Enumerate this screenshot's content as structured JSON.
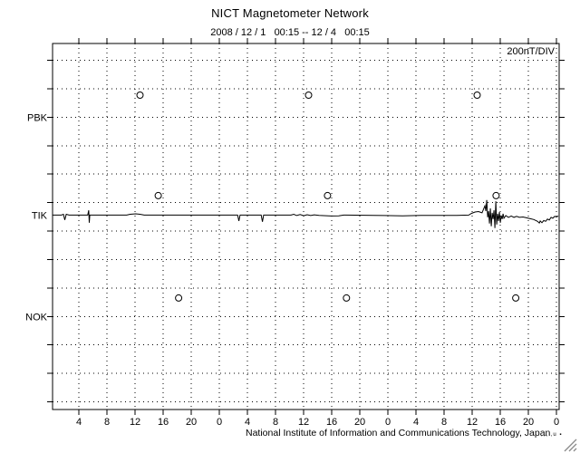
{
  "header": {
    "title": "NICT Magnetometer Network",
    "subtitle": "2008 / 12 / 1   00:15 -- 12 / 4   00:15"
  },
  "footer": {
    "credit": "National Institute of Information and Communications Technology, Japan",
    "fine_print": ",,, ,u ▪"
  },
  "chart_data": {
    "type": "line",
    "title": "NICT Magnetometer Network",
    "subtitle": "2008 / 12 / 1   00:15 -- 12 / 4   00:15",
    "scale_label": "200nT/DIV",
    "grid": "dotted",
    "x_axis": {
      "unit": "hour of day (UT)",
      "start_hour": 0.25,
      "end_hour": 72.25,
      "tick_interval_hours": 4,
      "tick_labels": [
        "4",
        "8",
        "12",
        "16",
        "20",
        "0",
        "4",
        "8",
        "12",
        "16",
        "20",
        "0",
        "4",
        "8",
        "12",
        "16",
        "20",
        "0"
      ]
    },
    "y_axis": {
      "n_gridlines": 13,
      "nt_per_division": 200,
      "station_labels": [
        "PBK",
        "TIK",
        "NOK"
      ]
    },
    "stations": [
      {
        "name": "PBK",
        "baseline_div": 2.0,
        "markers_hour": [
          12.7,
          36.7,
          60.7
        ],
        "marker_offset_nt": 155,
        "trace": null
      },
      {
        "name": "TIK",
        "baseline_div": 5.44,
        "markers_hour": [
          15.3,
          39.4,
          63.4
        ],
        "marker_offset_nt": 137,
        "trace": [
          [
            0.25,
            0
          ],
          [
            1.5,
            0
          ],
          [
            1.8,
            6
          ],
          [
            1.99,
            -34
          ],
          [
            2.2,
            6
          ],
          [
            2.6,
            0
          ],
          [
            5.25,
            0
          ],
          [
            5.4,
            34
          ],
          [
            5.47,
            -53
          ],
          [
            5.55,
            0
          ],
          [
            10.8,
            0
          ],
          [
            11.3,
            6
          ],
          [
            12.1,
            9
          ],
          [
            12.7,
            6
          ],
          [
            13.3,
            0
          ],
          [
            26.6,
            0
          ],
          [
            26.78,
            -41
          ],
          [
            26.95,
            0
          ],
          [
            29.95,
            0
          ],
          [
            30.13,
            -47
          ],
          [
            30.3,
            0
          ],
          [
            34.2,
            0
          ],
          [
            34.6,
            6
          ],
          [
            35.0,
            -3
          ],
          [
            35.5,
            4
          ],
          [
            36.0,
            -4
          ],
          [
            36.5,
            3
          ],
          [
            37.0,
            -3
          ],
          [
            37.5,
            2
          ],
          [
            38.2,
            -2
          ],
          [
            39.9,
            -6
          ],
          [
            41.0,
            -5
          ],
          [
            41.7,
            0
          ],
          [
            47.5,
            -3
          ],
          [
            50.1,
            -5
          ],
          [
            52.7,
            -2
          ],
          [
            57.8,
            -2
          ],
          [
            59.5,
            0
          ],
          [
            59.9,
            12
          ],
          [
            60.4,
            22
          ],
          [
            60.9,
            25
          ],
          [
            61.4,
            16
          ],
          [
            61.81,
            66
          ],
          [
            61.94,
            28
          ],
          [
            62.07,
            106
          ],
          [
            62.2,
            -16
          ],
          [
            62.33,
            28
          ],
          [
            62.46,
            -59
          ],
          [
            62.59,
            47
          ],
          [
            62.71,
            -78
          ],
          [
            62.84,
            16
          ],
          [
            62.97,
            -28
          ],
          [
            63.1,
            34
          ],
          [
            63.23,
            -91
          ],
          [
            63.36,
            97
          ],
          [
            63.49,
            -66
          ],
          [
            63.62,
            9
          ],
          [
            63.75,
            -41
          ],
          [
            63.88,
            22
          ],
          [
            64.0,
            -53
          ],
          [
            64.13,
            -3
          ],
          [
            64.26,
            -28
          ],
          [
            64.39,
            9
          ],
          [
            64.52,
            -22
          ],
          [
            64.78,
            -3
          ],
          [
            65.16,
            -16
          ],
          [
            65.55,
            -6
          ],
          [
            65.94,
            -16
          ],
          [
            66.32,
            -9
          ],
          [
            66.71,
            -16
          ],
          [
            67.23,
            -13
          ],
          [
            67.74,
            -19
          ],
          [
            68.26,
            -25
          ],
          [
            68.77,
            -31
          ],
          [
            69.29,
            -44
          ],
          [
            69.55,
            -56
          ],
          [
            69.68,
            -41
          ],
          [
            69.93,
            -53
          ],
          [
            70.19,
            -38
          ],
          [
            70.45,
            -44
          ],
          [
            70.71,
            -28
          ],
          [
            70.97,
            -34
          ],
          [
            71.23,
            -16
          ],
          [
            71.48,
            -22
          ],
          [
            71.74,
            -9
          ],
          [
            72.0,
            -13
          ],
          [
            72.25,
            -6
          ]
        ]
      },
      {
        "name": "NOK",
        "baseline_div": 9.0,
        "markers_hour": [
          18.2,
          42.1,
          66.2
        ],
        "marker_offset_nt": 130,
        "trace": null
      }
    ]
  }
}
